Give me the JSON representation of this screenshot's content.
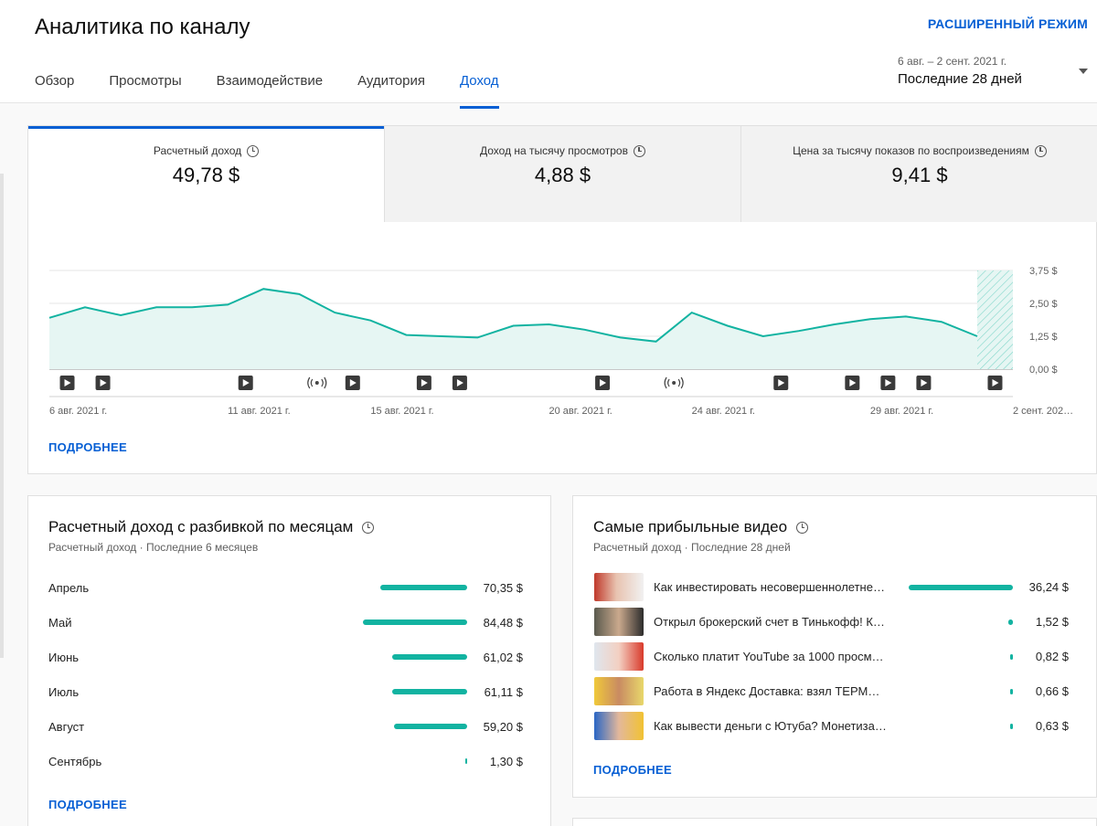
{
  "header": {
    "title": "Аналитика по каналу",
    "advanced_mode": "РАСШИРЕННЫЙ РЕЖИМ",
    "tabs": [
      {
        "label": "Обзор"
      },
      {
        "label": "Просмотры"
      },
      {
        "label": "Взаимодействие"
      },
      {
        "label": "Аудитория"
      },
      {
        "label": "Доход"
      }
    ],
    "active_tab": "Доход",
    "date_range": {
      "dates": "6 авг. – 2 сент. 2021 г.",
      "period": "Последние 28 дней"
    }
  },
  "metrics": [
    {
      "label": "Расчетный доход",
      "value": "49,78 $"
    },
    {
      "label": "Доход на тысячу просмотров",
      "value": "4,88 $"
    },
    {
      "label": "Цена за тысячу показов по воспроизведениям",
      "value": "9,41 $"
    }
  ],
  "chart_data": {
    "type": "area",
    "y_ticks": [
      "3,75 $",
      "2,50 $",
      "1,25 $",
      "0,00 $"
    ],
    "ylim": [
      0,
      3.75
    ],
    "x_ticks": [
      {
        "index": 0,
        "label": "6 авг. 2021 г."
      },
      {
        "index": 5,
        "label": "11 авг. 2021 г."
      },
      {
        "index": 9,
        "label": "15 авг. 2021 г."
      },
      {
        "index": 14,
        "label": "20 авг. 2021 г."
      },
      {
        "index": 18,
        "label": "24 авг. 2021 г."
      },
      {
        "index": 23,
        "label": "29 авг. 2021 г."
      },
      {
        "index": 27,
        "label": "2 сент. 202…"
      }
    ],
    "x": [
      "6 авг.",
      "7 авг.",
      "8 авг.",
      "9 авг.",
      "10 авг.",
      "11 авг.",
      "12 авг.",
      "13 авг.",
      "14 авг.",
      "15 авг.",
      "16 авг.",
      "17 авг.",
      "18 авг.",
      "19 авг.",
      "20 авг.",
      "21 авг.",
      "22 авг.",
      "23 авг.",
      "24 авг.",
      "25 авг.",
      "26 авг.",
      "27 авг.",
      "28 авг.",
      "29 авг.",
      "30 авг.",
      "31 авг.",
      "1 сент.",
      "2 сент."
    ],
    "values": [
      1.95,
      2.35,
      2.05,
      2.35,
      2.35,
      2.45,
      3.05,
      2.85,
      2.15,
      1.85,
      1.3,
      1.25,
      1.2,
      1.65,
      1.7,
      1.5,
      1.2,
      1.05,
      2.15,
      1.65,
      1.25,
      1.45,
      1.7,
      1.9,
      2.0,
      1.8,
      1.25,
      null
    ],
    "incomplete_last_day": true,
    "grid": true,
    "markers": [
      {
        "index": 1,
        "type": "video"
      },
      {
        "index": 2,
        "type": "video"
      },
      {
        "index": 6,
        "type": "video"
      },
      {
        "index": 8,
        "type": "live"
      },
      {
        "index": 9,
        "type": "video"
      },
      {
        "index": 11,
        "type": "video"
      },
      {
        "index": 12,
        "type": "video"
      },
      {
        "index": 16,
        "type": "video"
      },
      {
        "index": 18,
        "type": "live"
      },
      {
        "index": 21,
        "type": "video"
      },
      {
        "index": 23,
        "type": "video"
      },
      {
        "index": 24,
        "type": "video"
      },
      {
        "index": 25,
        "type": "video"
      },
      {
        "index": 27,
        "type": "video"
      }
    ],
    "colors": {
      "line": "#12b3a1",
      "fill": "#e6f6f3"
    }
  },
  "main_more": "ПОДРОБНЕЕ",
  "monthly": {
    "title": "Расчетный доход с разбивкой по месяцам",
    "subtitle": "Расчетный доход · Последние 6 месяцев",
    "max": 84.48,
    "rows": [
      {
        "label": "Апрель",
        "value_text": "70,35 $",
        "value": 70.35
      },
      {
        "label": "Май",
        "value_text": "84,48 $",
        "value": 84.48
      },
      {
        "label": "Июнь",
        "value_text": "61,02 $",
        "value": 61.02
      },
      {
        "label": "Июль",
        "value_text": "61,11 $",
        "value": 61.11
      },
      {
        "label": "Август",
        "value_text": "59,20 $",
        "value": 59.2
      },
      {
        "label": "Сентябрь",
        "value_text": "1,30 $",
        "value": 1.3
      }
    ],
    "more": "ПОДРОБНЕЕ"
  },
  "top_videos": {
    "title": "Самые прибыльные видео",
    "subtitle": "Расчетный доход · Последние 28 дней",
    "max": 36.24,
    "rows": [
      {
        "title": "Как инвестировать несовершеннолетне…",
        "value_text": "36,24 $",
        "value": 36.24
      },
      {
        "title": "Открыл брокерский счет в Тинькофф! Ка…",
        "value_text": "1,52 $",
        "value": 1.52
      },
      {
        "title": "Сколько платит YouTube за 1000 просмо…",
        "value_text": "0,82 $",
        "value": 0.82
      },
      {
        "title": "Работа в Яндекс Доставка: взял ТЕРМОК…",
        "value_text": "0,66 $",
        "value": 0.66
      },
      {
        "title": "Как вывести деньги с Ютуба? Монетизац…",
        "value_text": "0,63 $",
        "value": 0.63
      }
    ],
    "more": "ПОДРОБНЕЕ"
  },
  "colors": {
    "accent": "#065fd4",
    "bar": "#12b3a1"
  }
}
